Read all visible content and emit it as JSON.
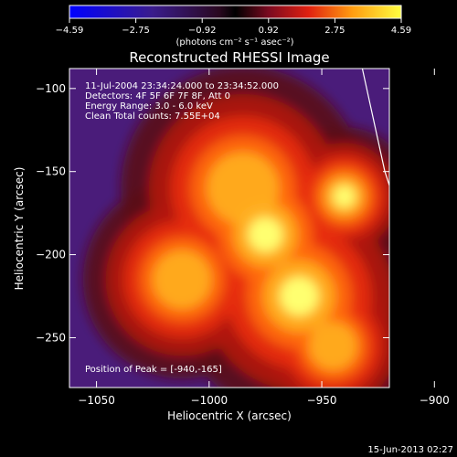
{
  "chart_data": {
    "type": "heatmap",
    "title": "Reconstructed RHESSI Image",
    "xlabel": "Heliocentric X (arcsec)",
    "ylabel": "Heliocentric Y (arcsec)",
    "xlim": [
      -1062,
      -920
    ],
    "ylim": [
      -280,
      -88
    ],
    "x_ticks": [
      {
        "value": -1050,
        "label": "−1050"
      },
      {
        "value": -1000,
        "label": "−1000"
      },
      {
        "value": -950,
        "label": "−950"
      },
      {
        "value": -900,
        "label": "−900"
      }
    ],
    "y_ticks": [
      {
        "value": -100,
        "label": "−100"
      },
      {
        "value": -150,
        "label": "−150"
      },
      {
        "value": -200,
        "label": "−200"
      },
      {
        "value": -250,
        "label": "−250"
      }
    ],
    "colorbar": {
      "ticks": [
        "−4.59",
        "−2.75",
        "−0.92",
        "0.92",
        "2.75",
        "4.59"
      ],
      "min": -4.59,
      "max": 4.59,
      "units_label": "(photons cm⁻² s⁻¹ asec⁻²)"
    },
    "info_lines": [
      "11-Jul-2004 23:34:24.000 to 23:34:52.000",
      "Detectors: 4F 5F 6F 7F 8F, Att 0",
      "Energy Range: 3.0 - 6.0 keV",
      "Clean     Total counts: 7.55E+04"
    ],
    "peak_label": "Position of Peak = [-940,-165]",
    "peak": {
      "x": -940,
      "y": -165
    },
    "sources": [
      {
        "x": -975,
        "y": -188,
        "intensity": 1.0,
        "radius": 22
      },
      {
        "x": -940,
        "y": -165,
        "intensity": 1.0,
        "radius": 14
      },
      {
        "x": -985,
        "y": -160,
        "intensity": 0.55,
        "radius": 30
      },
      {
        "x": -960,
        "y": -225,
        "intensity": 0.7,
        "radius": 28
      },
      {
        "x": -1012,
        "y": -215,
        "intensity": 0.5,
        "radius": 25
      },
      {
        "x": -945,
        "y": -255,
        "intensity": 0.55,
        "radius": 20
      }
    ],
    "limb": [
      {
        "x": -932,
        "y": -88
      },
      {
        "x": -922,
        "y": -150
      },
      {
        "x": -910,
        "y": -200
      },
      {
        "x": -902,
        "y": -240
      },
      {
        "x": -893,
        "y": -280
      }
    ],
    "colors": {
      "background": "#000000",
      "image_bg": "#4a1c7a",
      "limb": "#ffffff"
    }
  },
  "footer": {
    "date": "15-Jun-2013 02:27"
  }
}
